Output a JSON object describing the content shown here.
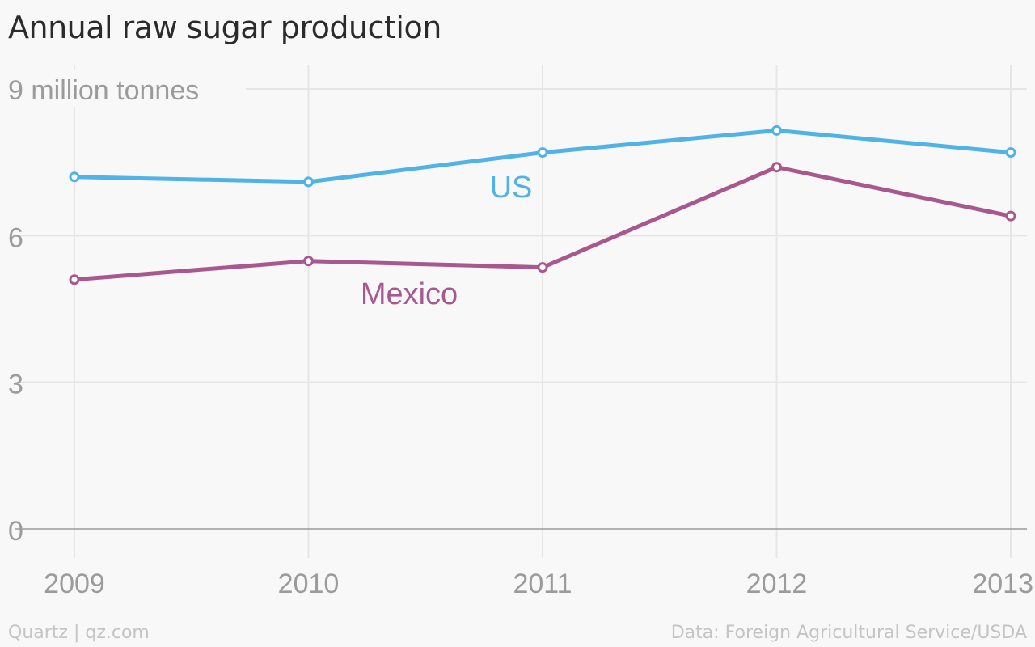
{
  "chart_data": {
    "type": "line",
    "title": "Annual raw sugar production",
    "y_unit_label": "9 million tonnes",
    "x": [
      "2009",
      "2010",
      "2011",
      "2012",
      "2013"
    ],
    "y_ticks": [
      0,
      3,
      6,
      9
    ],
    "y_tick_labels": [
      "0",
      "3",
      "6",
      ""
    ],
    "ylim": [
      0,
      9
    ],
    "grid": true,
    "series": [
      {
        "name": "US",
        "color": "#51b2e5",
        "values": [
          7.2,
          7.1,
          7.7,
          8.15,
          7.7
        ]
      },
      {
        "name": "Mexico",
        "color": "#a8588f",
        "values": [
          5.1,
          5.48,
          5.35,
          7.4,
          6.4
        ]
      }
    ]
  },
  "footer": {
    "source_left": "Quartz | qz.com",
    "source_right": "Data: Foreign Agricultural Service/USDA"
  }
}
